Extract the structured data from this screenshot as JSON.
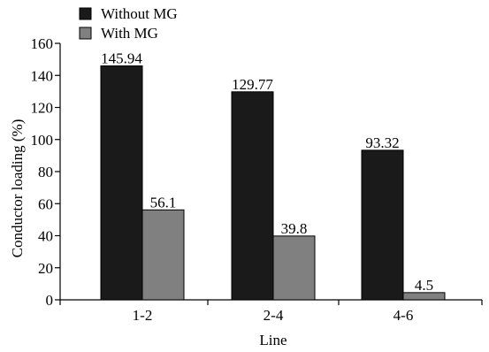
{
  "chart_data": {
    "type": "bar",
    "title": "",
    "xlabel": "Line",
    "ylabel": "Conductor loading (%)",
    "categories": [
      "1-2",
      "2-4",
      "4-6"
    ],
    "ylim": [
      0,
      160
    ],
    "yticks": [
      0,
      20,
      40,
      60,
      80,
      100,
      120,
      140,
      160
    ],
    "grid": false,
    "legend_position": "top-left",
    "series": [
      {
        "name": "Without MG",
        "color": "#1a1a1a",
        "values": [
          145.94,
          129.77,
          93.32
        ],
        "labels": [
          "145.94",
          "129.77",
          "93.32"
        ]
      },
      {
        "name": "With MG",
        "color": "#808080",
        "values": [
          56.1,
          39.8,
          4.5
        ],
        "labels": [
          "56.1",
          "39.8",
          "4.5"
        ]
      }
    ]
  }
}
